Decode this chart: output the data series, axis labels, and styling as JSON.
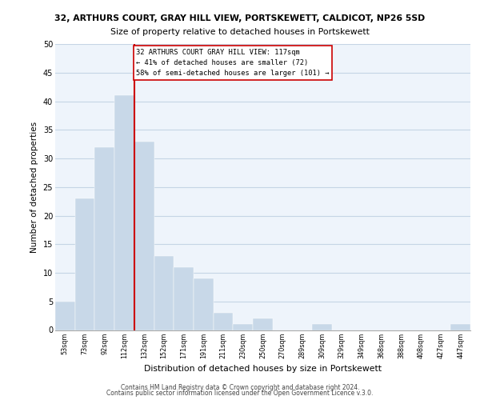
{
  "title_main": "32, ARTHURS COURT, GRAY HILL VIEW, PORTSKEWETT, CALDICOT, NP26 5SD",
  "title_sub": "Size of property relative to detached houses in Portskewett",
  "xlabel": "Distribution of detached houses by size in Portskewett",
  "ylabel": "Number of detached properties",
  "bin_labels": [
    "53sqm",
    "73sqm",
    "92sqm",
    "112sqm",
    "132sqm",
    "152sqm",
    "171sqm",
    "191sqm",
    "211sqm",
    "230sqm",
    "250sqm",
    "270sqm",
    "289sqm",
    "309sqm",
    "329sqm",
    "349sqm",
    "368sqm",
    "388sqm",
    "408sqm",
    "427sqm",
    "447sqm"
  ],
  "bar_heights": [
    5,
    23,
    32,
    41,
    33,
    13,
    11,
    9,
    3,
    1,
    2,
    0,
    0,
    1,
    0,
    0,
    0,
    0,
    0,
    0,
    1
  ],
  "bar_color": "#c8d8e8",
  "property_line_x": 3.5,
  "annotation_line1": "32 ARTHURS COURT GRAY HILL VIEW: 117sqm",
  "annotation_line2": "← 41% of detached houses are smaller (72)",
  "annotation_line3": "58% of semi-detached houses are larger (101) →",
  "vline_color": "#cc0000",
  "ylim": [
    0,
    50
  ],
  "yticks": [
    0,
    5,
    10,
    15,
    20,
    25,
    30,
    35,
    40,
    45,
    50
  ],
  "footer1": "Contains HM Land Registry data © Crown copyright and database right 2024.",
  "footer2": "Contains public sector information licensed under the Open Government Licence v.3.0.",
  "bg_color": "#eef4fb",
  "grid_color": "#c5d5e5"
}
